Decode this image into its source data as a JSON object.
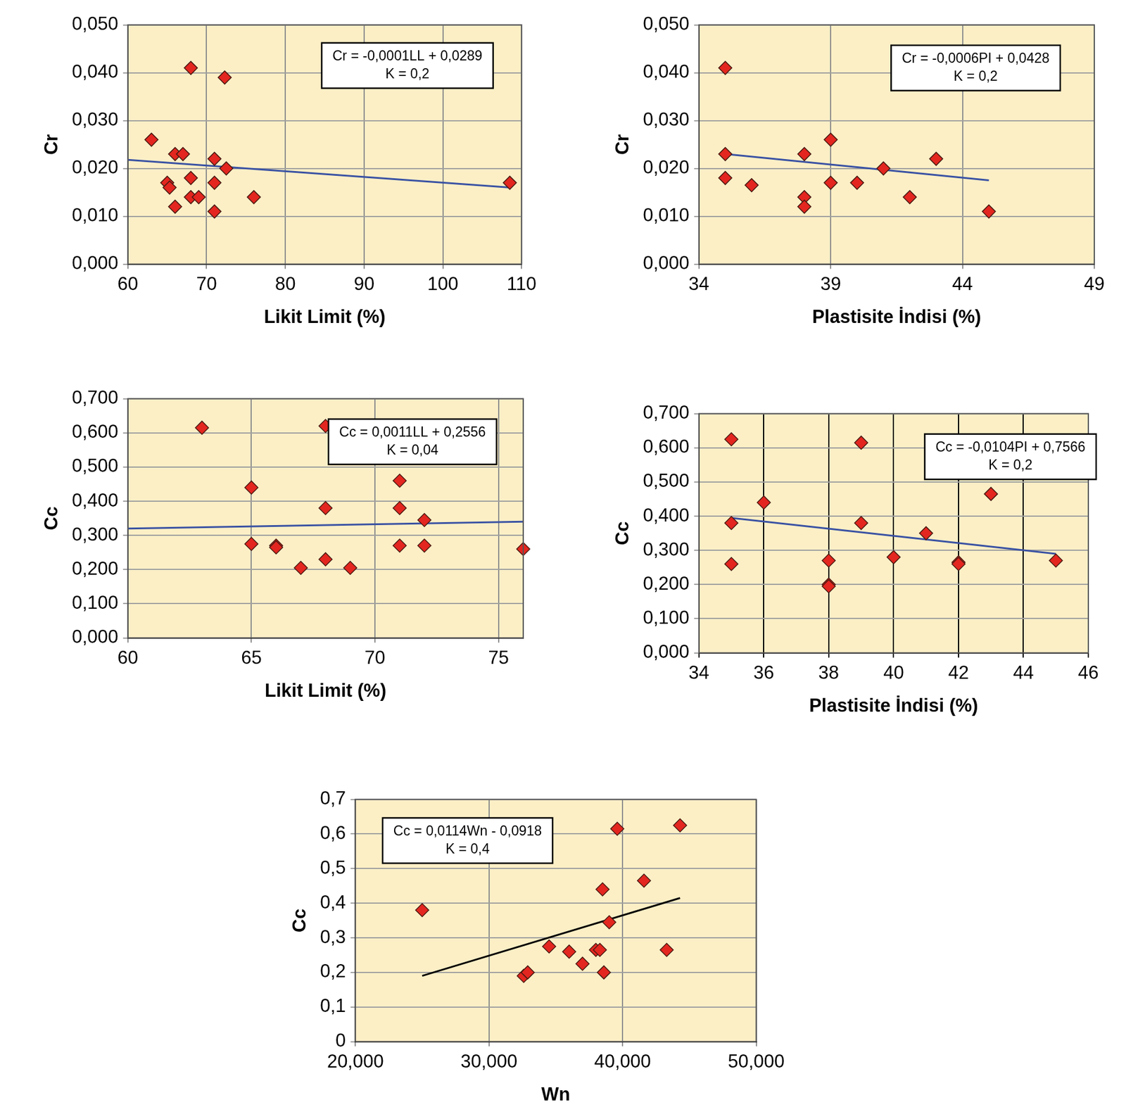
{
  "chart_data": [
    {
      "type": "scatter",
      "x_label": "Likit Limit (%)",
      "y_label": "Cr",
      "x": [
        68,
        72.3,
        63,
        66,
        67,
        71,
        72.5,
        68,
        65,
        65.3,
        71,
        108.5,
        68,
        69,
        76,
        66,
        71
      ],
      "values": [
        0.041,
        0.039,
        0.026,
        0.023,
        0.023,
        0.022,
        0.02,
        0.018,
        0.017,
        0.016,
        0.017,
        0.017,
        0.014,
        0.014,
        0.014,
        0.012,
        0.011
      ],
      "color": "#e3261f",
      "marker": "diamond",
      "trendline": {
        "x": [
          60,
          108.5
        ],
        "values": [
          0.0218,
          0.016
        ],
        "color": "#3a52a3",
        "line_style": "solid"
      },
      "annotation": [
        "Cr = -0,0001LL + 0,0289",
        "K = 0,2"
      ],
      "xlim": [
        60,
        110
      ],
      "xticks": [
        60,
        70,
        80,
        90,
        100,
        110
      ],
      "ylim": [
        0,
        0.05
      ],
      "yticks": [
        {
          "value": 0,
          "label": "0,000"
        },
        {
          "value": 0.01,
          "label": "0,010"
        },
        {
          "value": 0.02,
          "label": "0,020"
        },
        {
          "value": 0.03,
          "label": "0,030"
        },
        {
          "value": 0.04,
          "label": "0,040"
        },
        {
          "value": 0.05,
          "label": "0,050"
        }
      ],
      "grid": true
    },
    {
      "type": "scatter",
      "x_label": "Plastisite İndisi (%)",
      "y_label": "Cr",
      "x": [
        35,
        35,
        35,
        36,
        38,
        38,
        38,
        39,
        39,
        40,
        41,
        42,
        43,
        45
      ],
      "values": [
        0.041,
        0.023,
        0.018,
        0.0165,
        0.023,
        0.014,
        0.012,
        0.026,
        0.017,
        0.017,
        0.02,
        0.014,
        0.022,
        0.011
      ],
      "color": "#e3261f",
      "marker": "diamond",
      "trendline": {
        "x": [
          35,
          45
        ],
        "values": [
          0.023,
          0.0175
        ],
        "color": "#3a52a3",
        "line_style": "solid"
      },
      "annotation": [
        "Cr = -0,0006PI + 0,0428",
        "K = 0,2"
      ],
      "xlim": [
        34,
        49
      ],
      "xticks": [
        34,
        39,
        44,
        49
      ],
      "ylim": [
        0,
        0.05
      ],
      "yticks": [
        {
          "value": 0,
          "label": "0,000"
        },
        {
          "value": 0.01,
          "label": "0,010"
        },
        {
          "value": 0.02,
          "label": "0,020"
        },
        {
          "value": 0.03,
          "label": "0,030"
        },
        {
          "value": 0.04,
          "label": "0,040"
        },
        {
          "value": 0.05,
          "label": "0,050"
        }
      ],
      "grid": true
    },
    {
      "type": "scatter",
      "x_label": "Likit Limit (%)",
      "y_label": "Cc",
      "x": [
        63,
        68,
        65,
        71,
        68,
        71,
        72,
        65,
        66,
        66,
        71,
        72,
        76,
        67,
        68,
        69
      ],
      "values": [
        0.615,
        0.62,
        0.44,
        0.46,
        0.38,
        0.38,
        0.345,
        0.275,
        0.27,
        0.265,
        0.27,
        0.27,
        0.26,
        0.205,
        0.23,
        0.205
      ],
      "color": "#e3261f",
      "marker": "diamond",
      "trendline": {
        "x": [
          60,
          76
        ],
        "values": [
          0.32,
          0.34
        ],
        "color": "#3a52a3",
        "line_style": "solid"
      },
      "annotation": [
        "Cc = 0,0011LL + 0,2556",
        "K = 0,04"
      ],
      "xlim": [
        60,
        76
      ],
      "xticks": [
        60,
        65,
        70,
        75
      ],
      "ylim": [
        0,
        0.7
      ],
      "yticks": [
        {
          "value": 0,
          "label": "0,000"
        },
        {
          "value": 0.1,
          "label": "0,100"
        },
        {
          "value": 0.2,
          "label": "0,200"
        },
        {
          "value": 0.3,
          "label": "0,300"
        },
        {
          "value": 0.4,
          "label": "0,400"
        },
        {
          "value": 0.5,
          "label": "0,500"
        },
        {
          "value": 0.6,
          "label": "0,600"
        },
        {
          "value": 0.7,
          "label": "0,700"
        }
      ],
      "grid": true
    },
    {
      "type": "scatter",
      "x_label": "Plastisite İndisi (%)",
      "y_label": "Cc",
      "x": [
        35,
        35,
        35,
        36,
        38,
        38,
        38,
        39,
        39,
        40,
        41,
        42,
        42,
        43,
        45
      ],
      "values": [
        0.625,
        0.38,
        0.26,
        0.44,
        0.27,
        0.2,
        0.195,
        0.615,
        0.38,
        0.28,
        0.35,
        0.265,
        0.26,
        0.465,
        0.27
      ],
      "color": "#e3261f",
      "marker": "diamond",
      "trendline": {
        "x": [
          35,
          45
        ],
        "values": [
          0.395,
          0.29
        ],
        "color": "#3a52a3",
        "line_style": "solid"
      },
      "annotation": [
        "Cc = -0,0104PI + 0,7566",
        "K = 0,2"
      ],
      "xlim": [
        34,
        46
      ],
      "xticks": [
        34,
        36,
        38,
        40,
        42,
        44,
        46
      ],
      "ylim": [
        0,
        0.7
      ],
      "yticks": [
        {
          "value": 0,
          "label": "0,000"
        },
        {
          "value": 0.1,
          "label": "0,100"
        },
        {
          "value": 0.2,
          "label": "0,200"
        },
        {
          "value": 0.3,
          "label": "0,300"
        },
        {
          "value": 0.4,
          "label": "0,400"
        },
        {
          "value": 0.5,
          "label": "0,500"
        },
        {
          "value": 0.6,
          "label": "0,600"
        },
        {
          "value": 0.7,
          "label": "0,700"
        }
      ],
      "grid": true
    },
    {
      "type": "scatter",
      "x_label": "Wn",
      "y_label": "Cc",
      "x": [
        25,
        32.6,
        32.9,
        34.5,
        36,
        37,
        38,
        38.3,
        38.5,
        38.6,
        39,
        39.6,
        41.6,
        43.3,
        44.3
      ],
      "values": [
        0.38,
        0.19,
        0.2,
        0.275,
        0.26,
        0.225,
        0.265,
        0.265,
        0.44,
        0.2,
        0.345,
        0.615,
        0.465,
        0.265,
        0.625
      ],
      "color": "#e3261f",
      "marker": "diamond",
      "trendline": {
        "x": [
          25,
          44.3
        ],
        "values": [
          0.19,
          0.415
        ],
        "color": "#000000",
        "line_style": "solid"
      },
      "annotation": [
        "Cc = 0,0114Wn - 0,0918",
        "K = 0,4"
      ],
      "xlim": [
        20,
        50
      ],
      "xticks": [
        {
          "value": 20,
          "label": "20,000"
        },
        {
          "value": 30,
          "label": "30,000"
        },
        {
          "value": 40,
          "label": "40,000"
        },
        {
          "value": 50,
          "label": "50,000"
        }
      ],
      "ylim": [
        0,
        0.7
      ],
      "yticks": [
        0,
        {
          "value": 0.1,
          "label": "0,1"
        },
        {
          "value": 0.2,
          "label": "0,2"
        },
        {
          "value": 0.3,
          "label": "0,3"
        },
        {
          "value": 0.4,
          "label": "0,4"
        },
        {
          "value": 0.5,
          "label": "0,5"
        },
        {
          "value": 0.6,
          "label": "0,6"
        },
        {
          "value": 0.7,
          "label": "0,7"
        }
      ],
      "grid": true
    }
  ]
}
